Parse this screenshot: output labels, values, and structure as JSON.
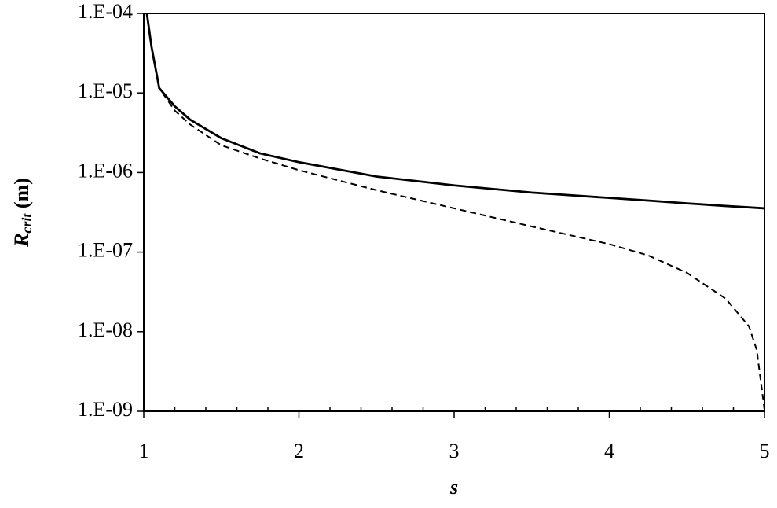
{
  "chart_data": {
    "type": "line",
    "ylabel": {
      "main": "R",
      "sub": "crit",
      "rest": " (m)"
    },
    "xlabel": "s",
    "x": [
      1.02,
      1.05,
      1.1,
      1.2,
      1.3,
      1.5,
      1.75,
      2,
      2.5,
      3,
      3.5,
      4,
      4.25,
      4.5,
      4.75,
      4.9,
      4.95,
      4.98,
      5
    ],
    "series": [
      {
        "color": "#000000",
        "dashed": false,
        "values": [
          0.0001,
          3.8e-05,
          1.15e-05,
          6.8e-06,
          4.6e-06,
          2.7e-06,
          1.74e-06,
          1.35e-06,
          8.9e-07,
          6.9e-07,
          5.6e-07,
          4.8e-07,
          4.45e-07,
          4.1e-07,
          3.8e-07,
          3.65e-07,
          3.6e-07,
          3.57e-07,
          3.55e-07
        ]
      },
      {
        "color": "#000000",
        "dashed": true,
        "values": [
          0.0001,
          3.8e-05,
          1.15e-05,
          6e-06,
          4e-06,
          2.2e-06,
          1.5e-06,
          1.07e-06,
          6e-07,
          3.55e-07,
          2.1e-07,
          1.26e-07,
          9.1e-08,
          5.5e-08,
          2.6e-08,
          1.17e-08,
          5.9e-09,
          2.1e-09,
          1.05e-09
        ]
      }
    ],
    "xlim": [
      1,
      5
    ],
    "xticks": [
      1,
      2,
      3,
      4,
      5
    ],
    "xminorticks": [
      1.2,
      1.4,
      1.6,
      1.8,
      2.2,
      2.4,
      2.6,
      2.8,
      3.2,
      3.4,
      3.6,
      3.8,
      4.2,
      4.4,
      4.6,
      4.8
    ],
    "ylim": [
      1e-09,
      0.0001
    ],
    "ylog": true,
    "yticks": [
      {
        "value": 1e-09,
        "label": "1.E-09"
      },
      {
        "value": 1e-08,
        "label": "1.E-08"
      },
      {
        "value": 1e-07,
        "label": "1.E-07"
      },
      {
        "value": 1e-06,
        "label": "1.E-06"
      },
      {
        "value": 1e-05,
        "label": "1.E-05"
      },
      {
        "value": 0.0001,
        "label": "1.E-04"
      }
    ],
    "grid": false
  }
}
